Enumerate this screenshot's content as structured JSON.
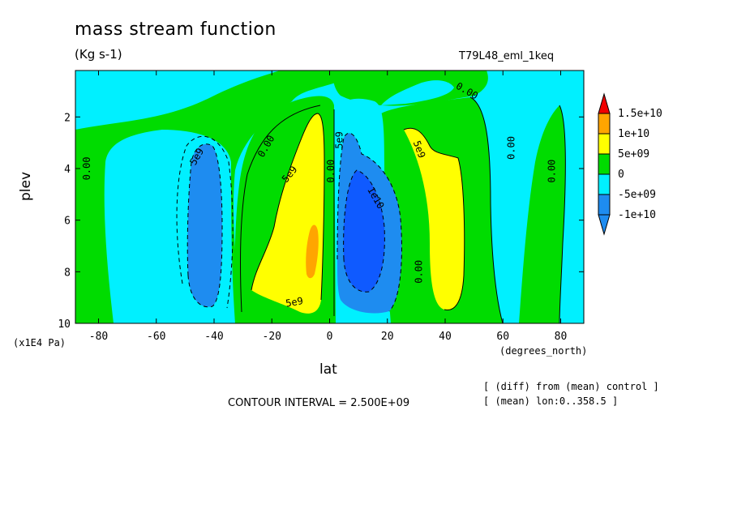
{
  "colors": {
    "c_neg10": "#1e8cf0",
    "c_neg5": "#00f0ff",
    "c_zero": "#00dc00",
    "c_pos5": "#ffff00",
    "c_pos10": "#ffa500",
    "c_pos15": "#f00000",
    "c_deep": "#0f5aff"
  },
  "chart_data": {
    "type": "contour",
    "title": "mass stream function",
    "units": "(Kg s-1)",
    "run_id": "T79L48_eml_1keq",
    "xlabel": "lat",
    "ylabel": "plev",
    "x_units": "(degrees_north)",
    "y_units": "(x1E4 Pa)",
    "xlim": [
      -88,
      88
    ],
    "ylim": [
      0.2,
      10
    ],
    "x_ticks": [
      -80,
      -60,
      -40,
      -20,
      0,
      20,
      40,
      60,
      80
    ],
    "x_tick_labels": [
      "-80",
      "-60",
      "-40",
      "-20",
      "0",
      "20",
      "40",
      "60",
      "80"
    ],
    "y_ticks": [
      2,
      4,
      6,
      8,
      10
    ],
    "y_tick_labels": [
      "2",
      "4",
      "6",
      "8",
      "10"
    ],
    "contour_interval_text": "CONTOUR INTERVAL = 2.500E+09",
    "notes": [
      "[ (diff) from (mean) control ]",
      "[ (mean) lon:0..358.5 ]"
    ],
    "legend": {
      "levels": [
        "1.5e+10",
        "1e+10",
        "5e+09",
        "0",
        "-5e+09",
        "-1e+10"
      ],
      "colors": [
        "#f00000",
        "#ffa500",
        "#ffff00",
        "#00dc00",
        "#00f0ff",
        "#1e8cf0",
        "#1e8cf0"
      ]
    },
    "contour_labels": [
      {
        "text": "5e9",
        "lat": -45,
        "p": 3.6,
        "angle": -60
      },
      {
        "text": "0.00",
        "lat": -83,
        "p": 4.0,
        "angle": -90
      },
      {
        "text": "0.00",
        "lat": -21,
        "p": 3.2,
        "angle": -60
      },
      {
        "text": "5e9",
        "lat": -13,
        "p": 4.3,
        "angle": -50
      },
      {
        "text": "5e9",
        "lat": -12,
        "p": 9.3,
        "angle": -10
      },
      {
        "text": "0.00",
        "lat": 1.5,
        "p": 4.1,
        "angle": -90
      },
      {
        "text": "5e9",
        "lat": 4.5,
        "p": 2.9,
        "angle": -90
      },
      {
        "text": "1e10",
        "lat": 15,
        "p": 5.2,
        "angle": 60
      },
      {
        "text": "0.00",
        "lat": 32,
        "p": 8.0,
        "angle": -90
      },
      {
        "text": "5e9",
        "lat": 30,
        "p": 3.3,
        "angle": 70
      },
      {
        "text": "0.00",
        "lat": 47,
        "p": 1.1,
        "angle": 30
      },
      {
        "text": "0.00",
        "lat": 64,
        "p": 3.2,
        "angle": -90
      },
      {
        "text": "0.00",
        "lat": 78,
        "p": 4.1,
        "angle": -90
      }
    ],
    "regions": [
      {
        "level": "-5e+09",
        "description": "cyan background (negative) over high latitudes"
      },
      {
        "level": "0",
        "description": "green positive bands"
      },
      {
        "level": "5e+09",
        "description": "yellow cell near -10 lat and 40 lat"
      },
      {
        "level": "1e+10",
        "description": "orange core near -5 lat, 7-8 plev"
      },
      {
        "level": "-1e+10",
        "description": "blue cells near -45 lat and 12 lat"
      }
    ]
  }
}
